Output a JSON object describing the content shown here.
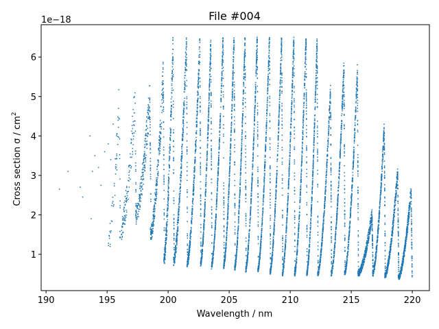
{
  "chart_data": {
    "type": "scatter",
    "title": "File #004",
    "xlabel": "Wavelength / nm",
    "ylabel": "Cross section σ / cm",
    "ylabel_superscript": "2",
    "y_offset_label": "1e−18",
    "y_scale_exponent": -18,
    "xlim": [
      189.6,
      221.4
    ],
    "ylim": [
      0.08,
      6.82
    ],
    "xticks": [
      190,
      195,
      200,
      205,
      210,
      215,
      220
    ],
    "xtick_labels": [
      "190",
      "195",
      "200",
      "205",
      "210",
      "215",
      "220"
    ],
    "yticks": [
      1,
      2,
      3,
      4,
      5,
      6
    ],
    "ytick_labels": [
      "1",
      "2",
      "3",
      "4",
      "5",
      "6"
    ],
    "grid": false,
    "marker_color": "#1f77b4",
    "band_structure": {
      "description": "vibronic absorption bands, each a sharp high edge followed by decay to shorter wavelength",
      "band_heads_nm": [
        196.0,
        197.3,
        198.5,
        199.6,
        200.4,
        201.5,
        202.6,
        203.5,
        204.5,
        205.4,
        206.3,
        207.3,
        208.3,
        209.3,
        210.3,
        211.3,
        212.2,
        213.3,
        214.4,
        215.5,
        216.7,
        217.7,
        218.8,
        219.9
      ],
      "band_peaks": [
        4.8,
        4.9,
        5.0,
        5.5,
        6.3,
        6.4,
        6.4,
        6.4,
        6.5,
        6.5,
        6.5,
        6.5,
        6.5,
        6.5,
        6.5,
        6.5,
        6.4,
        5.2,
        5.8,
        5.7,
        2.0,
        4.2,
        3.1,
        2.6
      ],
      "band_minima": [
        1.3,
        1.5,
        2.0,
        1.5,
        0.85,
        0.8,
        0.75,
        0.75,
        0.7,
        0.7,
        0.65,
        0.6,
        0.6,
        0.55,
        0.5,
        0.5,
        0.5,
        0.5,
        0.5,
        0.5,
        0.5,
        0.5,
        0.45,
        0.4
      ]
    },
    "sparse_points": [
      [
        191.1,
        2.65
      ],
      [
        191.8,
        3.1
      ],
      [
        192.8,
        2.7
      ],
      [
        193.0,
        2.45
      ],
      [
        193.6,
        4.0
      ],
      [
        193.7,
        1.9
      ],
      [
        193.8,
        3.1
      ],
      [
        194.0,
        3.5
      ],
      [
        194.3,
        3.2
      ],
      [
        194.5,
        2.75
      ],
      [
        194.8,
        3.6
      ],
      [
        195.1,
        3.8
      ],
      [
        195.3,
        3.4
      ],
      [
        195.5,
        4.3
      ]
    ]
  }
}
